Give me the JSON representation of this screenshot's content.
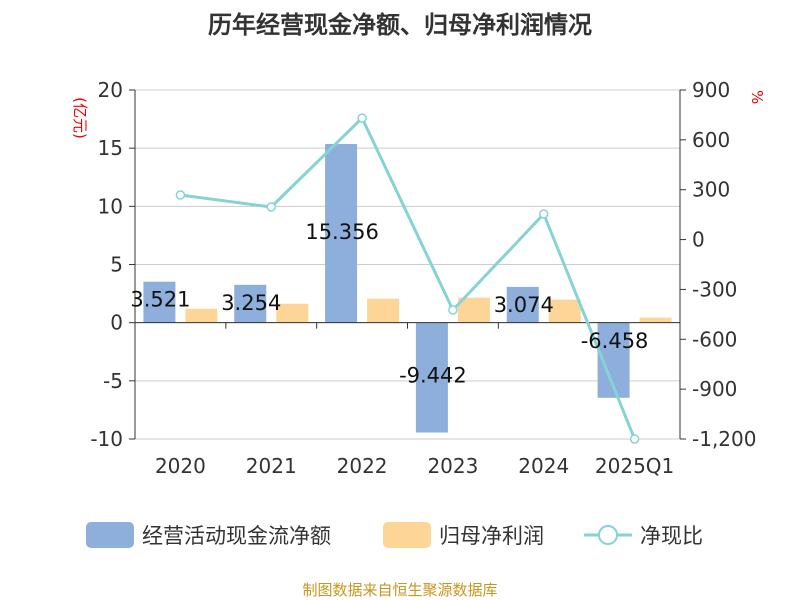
{
  "chart_data": {
    "type": "bar+line",
    "title": "历年经营现金净额、归母净利润情况",
    "categories": [
      "2020",
      "2021",
      "2022",
      "2023",
      "2024",
      "2025Q1"
    ],
    "series": [
      {
        "name": "经营活动现金流净额",
        "type": "bar",
        "axis": "left",
        "color": "#8eaedb",
        "values": [
          3.521,
          3.254,
          15.356,
          -9.442,
          3.074,
          -6.458
        ],
        "labels": [
          "3.521",
          "3.254",
          "15.356",
          "-9.442",
          "3.074",
          "-6.458"
        ]
      },
      {
        "name": "归母净利润",
        "type": "bar",
        "axis": "left",
        "color": "#fdd597",
        "values": [
          1.2,
          1.63,
          2.06,
          2.15,
          1.98,
          0.43
        ]
      },
      {
        "name": "净现比",
        "type": "line",
        "axis": "right",
        "color": "#86d3d6",
        "values": [
          268,
          196,
          731,
          -424,
          154,
          -1200
        ]
      }
    ],
    "ylabel": "(亿元)",
    "y2label": "%",
    "ylim": [
      -10,
      20
    ],
    "yticks": [
      "-10",
      "-5",
      "0",
      "5",
      "10",
      "15",
      "20"
    ],
    "y2lim": [
      -1200,
      900
    ],
    "y2ticks": [
      "-1,200",
      "-900",
      "-600",
      "-300",
      "0",
      "300",
      "600",
      "900"
    ],
    "grid": true,
    "legend": "bottom"
  },
  "source": "制图数据来自恒生聚源数据库"
}
